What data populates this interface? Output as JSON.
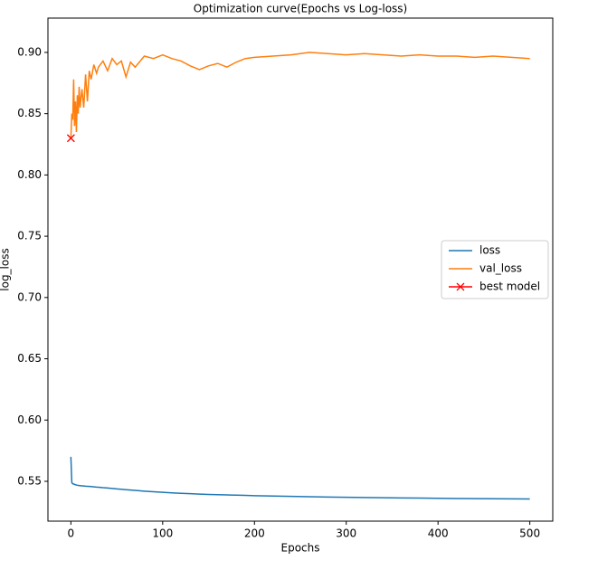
{
  "chart_data": {
    "type": "line",
    "title": "Optimization curve(Epochs vs Log-loss)",
    "x_label": "Epochs",
    "y_label": "log_loss",
    "x": [
      0,
      1,
      2,
      3,
      4,
      5,
      6,
      7,
      8,
      9,
      10,
      12,
      14,
      16,
      18,
      20,
      22,
      25,
      28,
      30,
      35,
      40,
      45,
      50,
      55,
      60,
      65,
      70,
      80,
      90,
      100,
      110,
      120,
      130,
      140,
      150,
      160,
      170,
      180,
      190,
      200,
      220,
      240,
      260,
      280,
      300,
      320,
      340,
      360,
      380,
      400,
      420,
      440,
      460,
      480,
      500
    ],
    "series": [
      {
        "name": "loss",
        "color": "#1f77b4",
        "values": [
          0.57,
          0.549,
          0.548,
          0.5478,
          0.5475,
          0.5472,
          0.547,
          0.5468,
          0.5467,
          0.5466,
          0.5465,
          0.5463,
          0.5462,
          0.546,
          0.5459,
          0.5458,
          0.5457,
          0.5455,
          0.5453,
          0.5452,
          0.5448,
          0.5445,
          0.5442,
          0.5438,
          0.5435,
          0.5432,
          0.5429,
          0.5426,
          0.542,
          0.5415,
          0.541,
          0.5406,
          0.5402,
          0.5399,
          0.5396,
          0.5393,
          0.5391,
          0.5389,
          0.5387,
          0.5385,
          0.5383,
          0.538,
          0.5377,
          0.5374,
          0.5372,
          0.537,
          0.5368,
          0.5366,
          0.5364,
          0.5363,
          0.5361,
          0.536,
          0.5359,
          0.5358,
          0.5357,
          0.5356
        ]
      },
      {
        "name": "val_loss",
        "color": "#ff7f0e",
        "values": [
          0.83,
          0.85,
          0.845,
          0.878,
          0.84,
          0.86,
          0.835,
          0.865,
          0.85,
          0.872,
          0.855,
          0.87,
          0.855,
          0.882,
          0.86,
          0.885,
          0.878,
          0.89,
          0.883,
          0.888,
          0.893,
          0.885,
          0.895,
          0.89,
          0.893,
          0.88,
          0.892,
          0.888,
          0.897,
          0.895,
          0.898,
          0.895,
          0.893,
          0.889,
          0.886,
          0.889,
          0.891,
          0.888,
          0.892,
          0.895,
          0.896,
          0.897,
          0.898,
          0.9,
          0.899,
          0.898,
          0.899,
          0.898,
          0.897,
          0.898,
          0.897,
          0.897,
          0.896,
          0.897,
          0.896,
          0.895
        ]
      },
      {
        "name": "best model",
        "color": "#ff0000",
        "marker": "x",
        "x": [
          0
        ],
        "values": [
          0.83
        ]
      }
    ],
    "xlim": [
      -25,
      525
    ],
    "xticks": [
      0,
      100,
      200,
      300,
      400,
      500
    ],
    "ylim": [
      0.5175,
      0.928
    ],
    "yticks": [
      0.55,
      {
        "value": 0.6,
        "label": "0.60"
      },
      0.65,
      {
        "value": 0.7,
        "label": "0.70"
      },
      0.75,
      {
        "value": 0.8,
        "label": "0.80"
      },
      0.85,
      {
        "value": 0.9,
        "label": "0.90"
      }
    ],
    "grid": false,
    "legend": "center right"
  }
}
